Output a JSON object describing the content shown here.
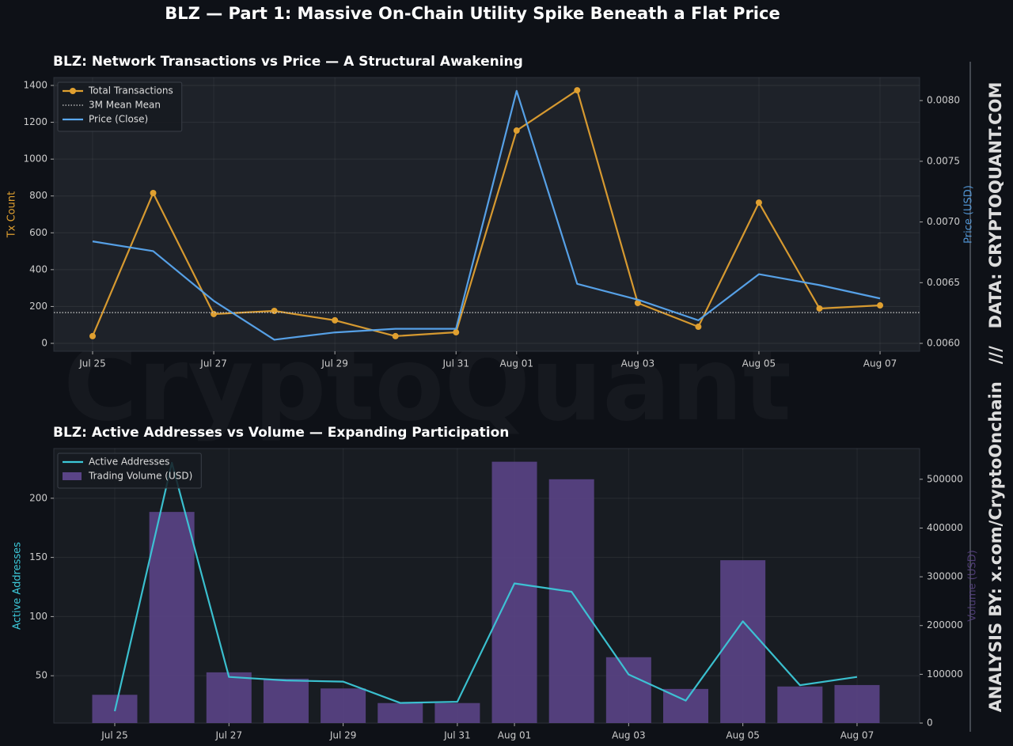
{
  "title": "BLZ — Part 1: Massive On-Chain Utility Spike Beneath a Flat Price",
  "watermark": "CryptoQuant",
  "side_text": "ANALYSIS BY: x.com/CryptoOnchain   ///   DATA: CRYPTOQUANT.COM",
  "chart_data": [
    {
      "type": "line",
      "title": "BLZ: Network Transactions vs Price — A Structural Awakening",
      "categories": [
        "Jul 25",
        null,
        "Jul 27",
        null,
        "Jul 29",
        null,
        "Jul 31",
        "Aug 01",
        null,
        "Aug 03",
        null,
        "Aug 05",
        null,
        "Aug 07"
      ],
      "ylabel": "Tx Count",
      "y2label": "Price (USD)",
      "ylim": [
        -43,
        1443
      ],
      "yticks": [
        0,
        200,
        400,
        600,
        800,
        1000,
        1200,
        1400
      ],
      "y2lim": [
        0.005935,
        0.00819
      ],
      "y2ticks": [
        {
          "value": 0.006,
          "label": "0.0060"
        },
        0.0065,
        {
          "value": 0.007,
          "label": "0.0070"
        },
        0.0075,
        {
          "value": 0.008,
          "label": "0.0080"
        }
      ],
      "grid": true,
      "legend": "upper left",
      "series": [
        {
          "name": "Total Transactions",
          "type": "line",
          "markers": true,
          "color": "#e0a030",
          "values": [
            39,
            816,
            159,
            176,
            125,
            39,
            60,
            1155,
            1374,
            219,
            90,
            764,
            189,
            206
          ]
        },
        {
          "name": "3M Mean Mean",
          "type": "hline",
          "color": "#cccccc",
          "value": 167
        },
        {
          "name": "Price (Close)",
          "type": "line",
          "axis": "y2",
          "color": "#5aa8f0",
          "values": [
            0.00684,
            0.00676,
            0.00635,
            0.00603,
            0.00609,
            0.00612,
            0.00612,
            0.00808,
            0.00649,
            0.00636,
            0.00619,
            0.00657,
            0.00648,
            0.00637
          ]
        }
      ]
    },
    {
      "type": "bar",
      "title": "BLZ: Active Addresses vs Volume — Expanding Participation",
      "categories": [
        "Jul 25",
        null,
        "Jul 27",
        null,
        "Jul 29",
        null,
        "Jul 31",
        "Aug 01",
        null,
        "Aug 03",
        null,
        "Aug 05",
        null,
        "Aug 07"
      ],
      "ylabel": "Active Addresses",
      "y2label": "Volume (USD)",
      "ylim": [
        10,
        242
      ],
      "yticks": [
        50,
        100,
        150,
        200
      ],
      "y2lim": [
        0,
        563000
      ],
      "y2ticks": [
        0,
        100000,
        200000,
        300000,
        400000,
        500000
      ],
      "grid": true,
      "legend": "upper left",
      "series": [
        {
          "name": "Active Addresses",
          "type": "line",
          "color": "#3cc8d8",
          "values": [
            20,
            230,
            49,
            46,
            45,
            27,
            28,
            128,
            121,
            51,
            29,
            96,
            42,
            49
          ]
        },
        {
          "name": "Trading Volume (USD)",
          "type": "bar",
          "axis": "y2",
          "color": "#5a4486",
          "values": [
            58000,
            433000,
            104000,
            91000,
            71000,
            41000,
            41000,
            536000,
            500000,
            135000,
            70000,
            334000,
            75000,
            78000
          ]
        }
      ]
    }
  ]
}
